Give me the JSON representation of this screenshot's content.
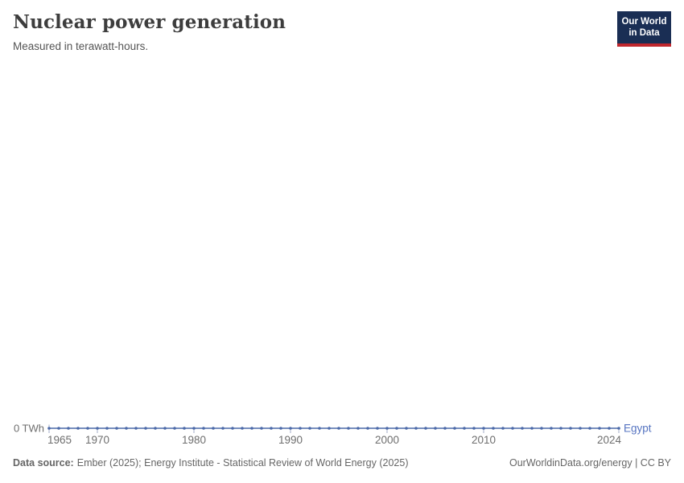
{
  "header": {
    "title": "Nuclear power generation",
    "subtitle": "Measured in terawatt-hours.",
    "logo": {
      "line1": "Our World",
      "line2": "in Data"
    }
  },
  "chart_data": {
    "type": "line",
    "title": "Nuclear power generation",
    "subtitle": "Measured in terawatt-hours.",
    "unit": "TWh",
    "xlabel": "",
    "ylabel": "",
    "xlim": [
      1965,
      2024
    ],
    "ylim": [
      0,
      0
    ],
    "grid": false,
    "legend_position": "end-of-line",
    "x": [
      1965,
      1966,
      1967,
      1968,
      1969,
      1970,
      1971,
      1972,
      1973,
      1974,
      1975,
      1976,
      1977,
      1978,
      1979,
      1980,
      1981,
      1982,
      1983,
      1984,
      1985,
      1986,
      1987,
      1988,
      1989,
      1990,
      1991,
      1992,
      1993,
      1994,
      1995,
      1996,
      1997,
      1998,
      1999,
      2000,
      2001,
      2002,
      2003,
      2004,
      2005,
      2006,
      2007,
      2008,
      2009,
      2010,
      2011,
      2012,
      2013,
      2014,
      2015,
      2016,
      2017,
      2018,
      2019,
      2020,
      2021,
      2022,
      2023,
      2024
    ],
    "series": [
      {
        "name": "Egypt",
        "color": "#4c6aa9",
        "values": [
          0,
          0,
          0,
          0,
          0,
          0,
          0,
          0,
          0,
          0,
          0,
          0,
          0,
          0,
          0,
          0,
          0,
          0,
          0,
          0,
          0,
          0,
          0,
          0,
          0,
          0,
          0,
          0,
          0,
          0,
          0,
          0,
          0,
          0,
          0,
          0,
          0,
          0,
          0,
          0,
          0,
          0,
          0,
          0,
          0,
          0,
          0,
          0,
          0,
          0,
          0,
          0,
          0,
          0,
          0,
          0,
          0,
          0,
          0,
          0
        ]
      }
    ],
    "x_ticks": [
      1965,
      1970,
      1980,
      1990,
      2000,
      2010,
      2024
    ],
    "y_ticks": [
      {
        "value": 0,
        "label": "0 TWh"
      }
    ]
  },
  "footer": {
    "source_label": "Data source:",
    "source_text": "Ember (2025); Energy Institute - Statistical Review of World Energy (2025)",
    "credit": "OurWorldinData.org/energy | CC BY"
  },
  "colors": {
    "series": "#4c6aa9",
    "entity_label": "#5674c1",
    "axis_text": "#6e6e6e",
    "tick": "#a3aec9",
    "logo_bg": "#1a2e54",
    "logo_accent": "#c0272d"
  }
}
